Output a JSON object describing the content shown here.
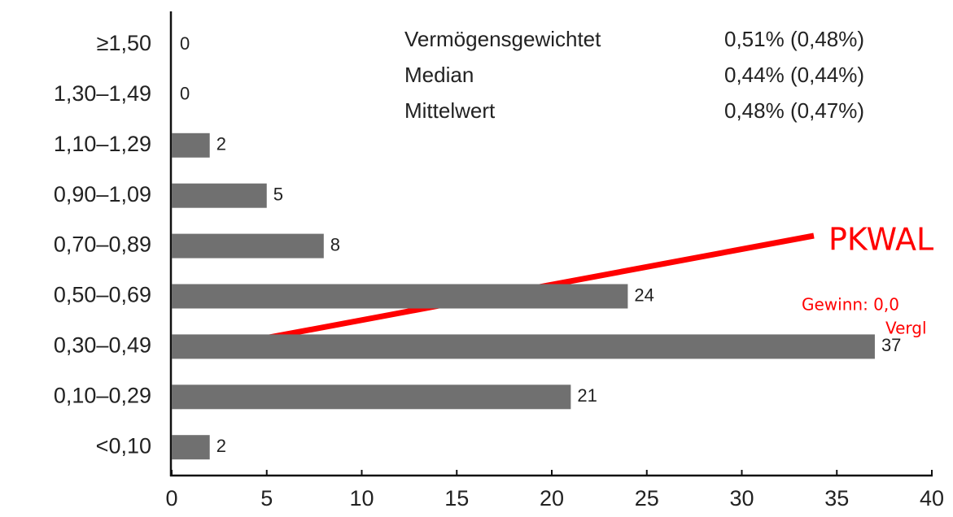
{
  "chart_data": {
    "type": "hbar",
    "categories": [
      "≥1,50",
      "1,30–1,49",
      "1,10–1,29",
      "0,90–1,09",
      "0,70–0,89",
      "0,50–0,69",
      "0,30–0,49",
      "0,10–0,29",
      "<0,10"
    ],
    "values": [
      0,
      0,
      2,
      5,
      8,
      24,
      37,
      21,
      2
    ],
    "color": "#707070",
    "xlim": [
      0,
      40
    ],
    "xticks": [
      0,
      5,
      10,
      15,
      20,
      25,
      30,
      35,
      40
    ],
    "stats": [
      {
        "label": "Vermögensgewichtet",
        "value": "0,51% (0,48%)"
      },
      {
        "label": "Median",
        "value": "0,44% (0,44%)"
      },
      {
        "label": "Mittelwert",
        "value": "0,48% (0,47%)"
      }
    ],
    "callout": [
      "PKWAL",
      "Gewinn: 0,0",
      "Vergl"
    ],
    "callout_color": "#ff0000"
  }
}
